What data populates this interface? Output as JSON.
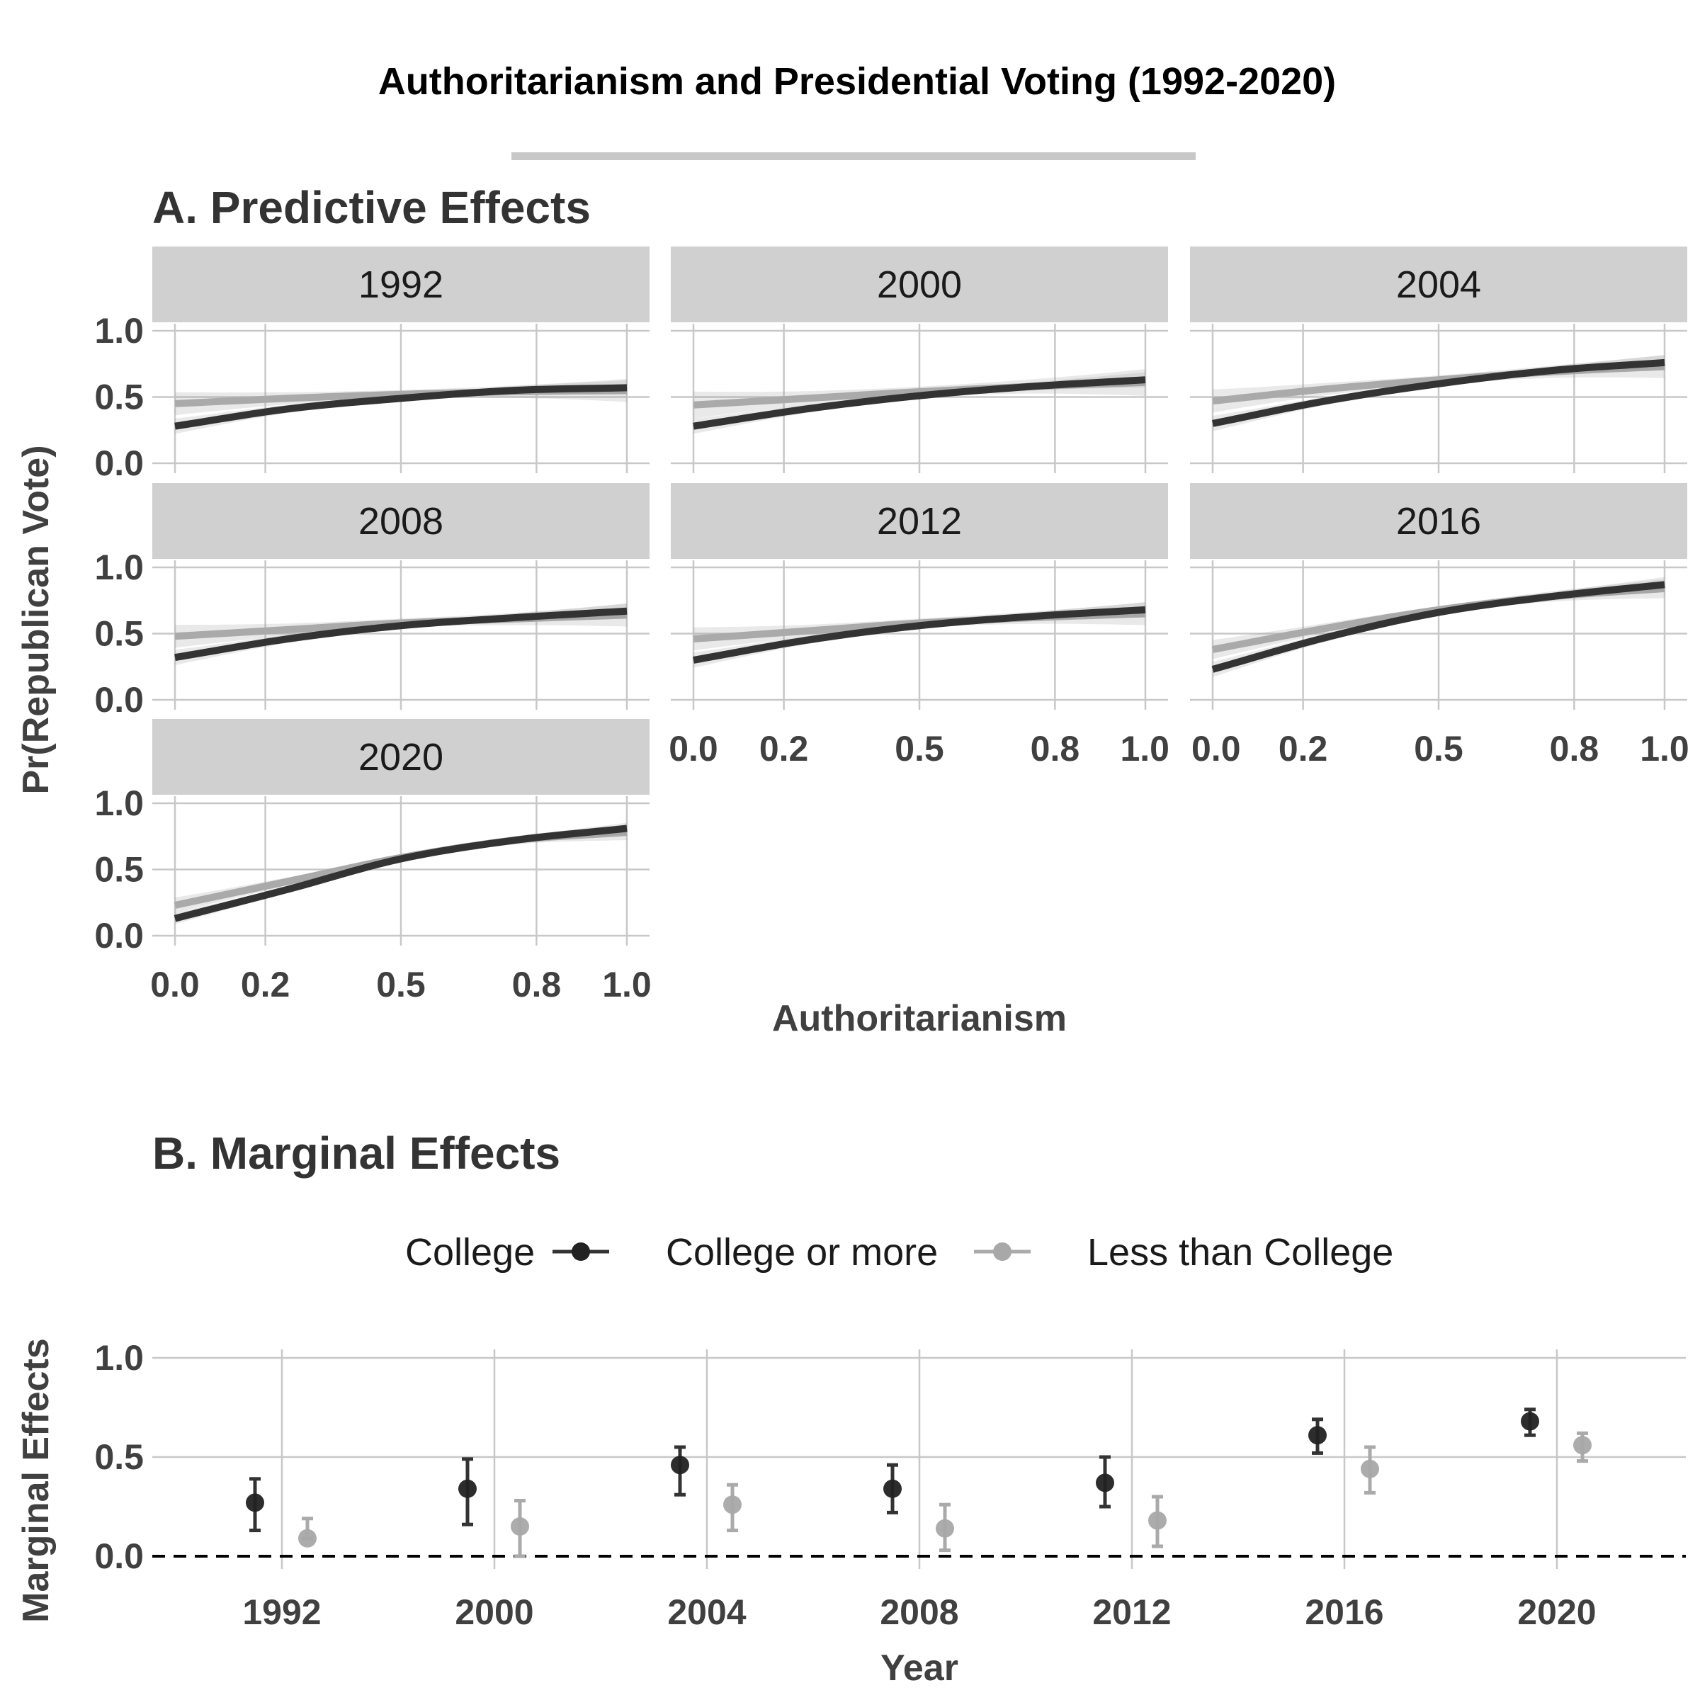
{
  "title": "Authoritarianism and Presidential Voting (1992-2020)",
  "panel_a": {
    "heading": "A. Predictive Effects",
    "y_label": "Pr(Republican Vote)",
    "x_label": "Authoritarianism"
  },
  "panel_b": {
    "heading": "B. Marginal Effects",
    "y_label": "Marginal Effects",
    "x_label": "Year"
  },
  "legend": {
    "title": "College",
    "items": [
      "College or more",
      "Less than College"
    ]
  },
  "colors": {
    "college": "#333333",
    "less_college": "#aaaaaa",
    "strip": "#d0d0d0",
    "grid": "#c8c8c8"
  },
  "chart_data": [
    {
      "type": "line",
      "title": "A. Predictive Effects",
      "xlabel": "Authoritarianism",
      "ylabel": "Pr(Republican Vote)",
      "xlim": [
        0,
        1
      ],
      "ylim": [
        0,
        1
      ],
      "x_ticks": [
        "0.0",
        "0.2",
        "0.5",
        "0.8",
        "1.0"
      ],
      "y_ticks": [
        "0.0",
        "0.5",
        "1.0"
      ],
      "x": [
        0,
        0.25,
        0.5,
        0.75,
        1
      ],
      "facets": [
        {
          "label": "1992",
          "series": [
            {
              "name": "College or more",
              "values": [
                0.28,
                0.41,
                0.49,
                0.55,
                0.57
              ],
              "ci": 0.04
            },
            {
              "name": "Less than College",
              "values": [
                0.45,
                0.49,
                0.52,
                0.54,
                0.55
              ],
              "ci": 0.06
            }
          ]
        },
        {
          "label": "2000",
          "series": [
            {
              "name": "College or more",
              "values": [
                0.28,
                0.41,
                0.51,
                0.58,
                0.63
              ],
              "ci": 0.04
            },
            {
              "name": "Less than College",
              "values": [
                0.44,
                0.49,
                0.54,
                0.58,
                0.61
              ],
              "ci": 0.07
            }
          ]
        },
        {
          "label": "2004",
          "series": [
            {
              "name": "College or more",
              "values": [
                0.3,
                0.47,
                0.6,
                0.7,
                0.76
              ],
              "ci": 0.04
            },
            {
              "name": "Less than College",
              "values": [
                0.47,
                0.56,
                0.63,
                0.69,
                0.73
              ],
              "ci": 0.06
            }
          ]
        },
        {
          "label": "2008",
          "series": [
            {
              "name": "College or more",
              "values": [
                0.32,
                0.46,
                0.56,
                0.62,
                0.67
              ],
              "ci": 0.04
            },
            {
              "name": "Less than College",
              "values": [
                0.48,
                0.53,
                0.58,
                0.61,
                0.64
              ],
              "ci": 0.06
            }
          ]
        },
        {
          "label": "2012",
          "series": [
            {
              "name": "College or more",
              "values": [
                0.3,
                0.45,
                0.56,
                0.63,
                0.68
              ],
              "ci": 0.04
            },
            {
              "name": "Less than College",
              "values": [
                0.46,
                0.52,
                0.58,
                0.62,
                0.65
              ],
              "ci": 0.06
            }
          ]
        },
        {
          "label": "2016",
          "series": [
            {
              "name": "College or more",
              "values": [
                0.23,
                0.47,
                0.66,
                0.78,
                0.87
              ],
              "ci": 0.04
            },
            {
              "name": "Less than College",
              "values": [
                0.38,
                0.54,
                0.68,
                0.78,
                0.84
              ],
              "ci": 0.05
            }
          ]
        },
        {
          "label": "2020",
          "series": [
            {
              "name": "College or more",
              "values": [
                0.13,
                0.35,
                0.58,
                0.72,
                0.81
              ],
              "ci": 0.03
            },
            {
              "name": "Less than College",
              "values": [
                0.23,
                0.41,
                0.59,
                0.72,
                0.78
              ],
              "ci": 0.04
            }
          ]
        }
      ]
    },
    {
      "type": "scatter",
      "title": "B. Marginal Effects",
      "xlabel": "Year",
      "ylabel": "Marginal Effects",
      "categories": [
        "1992",
        "2000",
        "2004",
        "2008",
        "2012",
        "2016",
        "2020"
      ],
      "ylim": [
        0,
        1
      ],
      "y_ticks": [
        "0.0",
        "0.5",
        "1.0"
      ],
      "reference_line": 0,
      "series": [
        {
          "name": "College or more",
          "values": [
            0.27,
            0.34,
            0.46,
            0.34,
            0.37,
            0.61,
            0.68
          ],
          "lower": [
            0.13,
            0.16,
            0.31,
            0.22,
            0.25,
            0.52,
            0.61
          ],
          "upper": [
            0.39,
            0.49,
            0.55,
            0.46,
            0.5,
            0.69,
            0.74
          ]
        },
        {
          "name": "Less than College",
          "values": [
            0.09,
            0.15,
            0.26,
            0.14,
            0.18,
            0.44,
            0.56
          ],
          "lower": [
            0.09,
            0.0,
            0.13,
            0.03,
            0.05,
            0.32,
            0.48
          ],
          "upper": [
            0.19,
            0.28,
            0.36,
            0.26,
            0.3,
            0.55,
            0.62
          ]
        }
      ]
    }
  ]
}
